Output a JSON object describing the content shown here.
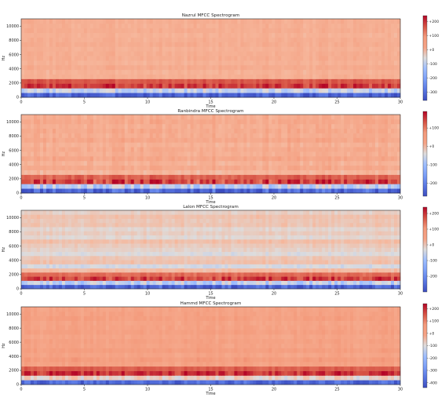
{
  "chart_data": [
    {
      "type": "heatmap",
      "title": "Nazrul MFCC Spectrogram",
      "xlabel": "Time",
      "ylabel": "Hz",
      "xlim": [
        0,
        30
      ],
      "ylim": [
        0,
        11025
      ],
      "x_ticks": [
        0,
        5,
        10,
        15,
        20,
        25,
        30
      ],
      "y_ticks": [
        0,
        2000,
        4000,
        6000,
        8000,
        10000
      ],
      "colorbar": {
        "ticks": [
          "+200",
          "+100",
          "+0",
          "-100",
          "-200",
          "-300"
        ],
        "values": [
          200,
          100,
          0,
          -100,
          -200,
          -300
        ],
        "range": [
          -360,
          240
        ],
        "colormap": "coolwarm"
      },
      "band_profile": [
        -320,
        -90,
        190,
        160,
        35,
        28,
        45,
        30,
        40,
        38,
        32,
        42,
        36,
        30,
        40,
        34,
        38
      ],
      "texture": 20,
      "seed": 3
    },
    {
      "type": "heatmap",
      "title": "Ranbindra MFCC Spectrogram",
      "xlabel": "Time",
      "ylabel": "Hz",
      "xlim": [
        0,
        30
      ],
      "ylim": [
        0,
        11025
      ],
      "x_ticks": [
        0,
        5,
        10,
        15,
        20,
        25,
        30
      ],
      "y_ticks": [
        0,
        2000,
        4000,
        6000,
        8000,
        10000
      ],
      "colorbar": {
        "ticks": [
          "+100",
          "+0",
          "-100",
          "-200"
        ],
        "values": [
          100,
          0,
          -100,
          -200
        ],
        "range": [
          -270,
          190
        ],
        "colormap": "coolwarm"
      },
      "band_profile": [
        -230,
        -70,
        150,
        120,
        20,
        45,
        30,
        50,
        35,
        42,
        30,
        48,
        38,
        44,
        36,
        46,
        40
      ],
      "texture": 22,
      "seed": 11
    },
    {
      "type": "heatmap",
      "title": "Lalon MFCC Spectrogram",
      "xlabel": "Time",
      "ylabel": "Hz",
      "xlim": [
        0,
        30
      ],
      "ylim": [
        0,
        11025
      ],
      "x_ticks": [
        0,
        5,
        10,
        15,
        20,
        25,
        30
      ],
      "y_ticks": [
        0,
        2000,
        4000,
        6000,
        8000,
        10000
      ],
      "colorbar": {
        "ticks": [
          "+200",
          "+100",
          "+0",
          "-100",
          "-200"
        ],
        "values": [
          200,
          100,
          0,
          -100,
          -200
        ],
        "range": [
          -300,
          240
        ],
        "colormap": "coolwarm"
      },
      "band_profile": [
        -260,
        -60,
        190,
        150,
        30,
        -40,
        20,
        10,
        -30,
        -10,
        5,
        25,
        -20,
        0,
        -15,
        15,
        10,
        20,
        -5
      ],
      "texture": 18,
      "seed": 23
    },
    {
      "type": "heatmap",
      "title": "Hammd MFCC Spectrogram",
      "xlabel": "Time",
      "ylabel": "Hz",
      "xlim": [
        0,
        30
      ],
      "ylim": [
        0,
        11025
      ],
      "x_ticks": [
        0,
        5,
        10,
        15,
        20,
        25,
        30
      ],
      "y_ticks": [
        0,
        2000,
        4000,
        6000,
        8000,
        10000
      ],
      "colorbar": {
        "ticks": [
          "+200",
          "+100",
          "+0",
          "-100",
          "-200",
          "-300",
          "-400"
        ],
        "values": [
          200,
          100,
          0,
          -100,
          -200,
          -300,
          -400
        ],
        "range": [
          -440,
          240
        ],
        "colormap": "coolwarm"
      },
      "band_profile": [
        -380,
        -70,
        190,
        140,
        45,
        60,
        40,
        55,
        42,
        48,
        38,
        50,
        44,
        40,
        52,
        46,
        42
      ],
      "texture": 20,
      "seed": 41
    }
  ]
}
